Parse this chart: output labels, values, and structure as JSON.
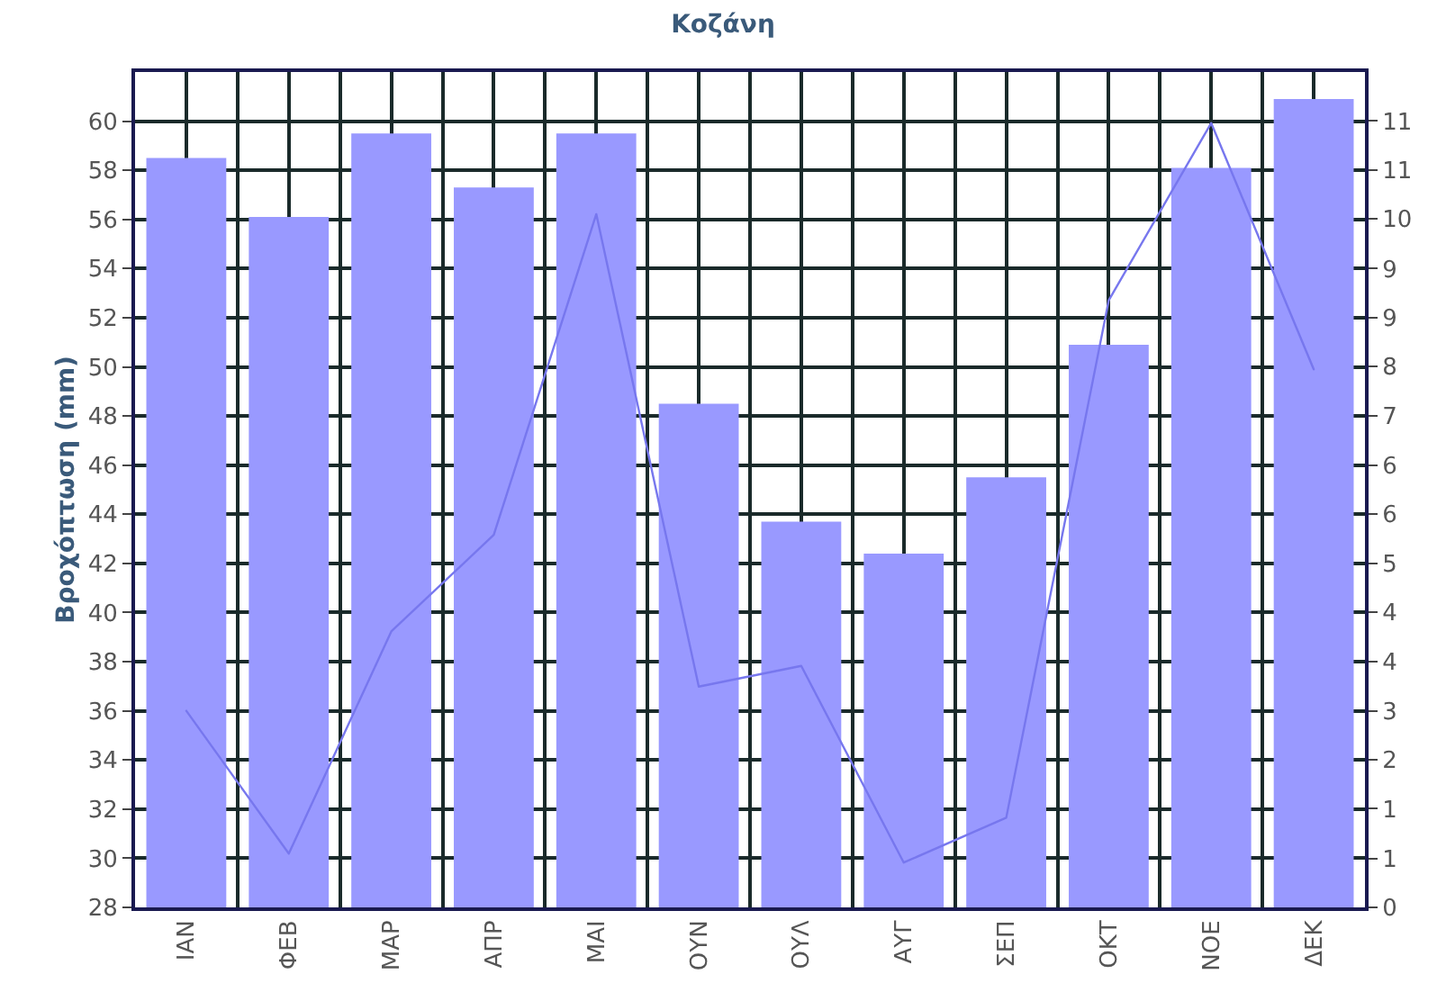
{
  "chart_data": {
    "type": "bar",
    "title": "Κοζάνη",
    "ylabel": "Βροχόπτωση (mm)",
    "categories": [
      "ΙΑΝ",
      "ΦΕΒ",
      "ΜΑΡ",
      "ΑΠΡ",
      "ΜΑΙ",
      "ΟΥΝ",
      "ΟΥΛ",
      "ΑΥΓ",
      "ΣΕΠ",
      "ΟΚΤ",
      "ΝΟΕ",
      "ΔΕΚ"
    ],
    "series": [
      {
        "color": "#9999ff",
        "values": [
          58.5,
          56.1,
          59.5,
          57.3,
          59.5,
          48.5,
          43.7,
          42.4,
          45.5,
          50.9,
          58.1,
          60.9
        ]
      },
      {
        "type": "line",
        "axis": "y2",
        "color": "#7777ee",
        "values": [
          2.85,
          0.78,
          4.0,
          5.4,
          10.05,
          3.2,
          3.5,
          0.65,
          1.3,
          8.8,
          11.37,
          7.8
        ]
      }
    ],
    "ylim": [
      28,
      62
    ],
    "yticks": [
      28,
      30,
      32,
      34,
      36,
      38,
      40,
      42,
      44,
      46,
      48,
      50,
      52,
      54,
      56,
      58,
      60
    ],
    "y2lim": [
      0,
      12.11
    ],
    "y2ticks": [
      0,
      {
        "value": 0.71,
        "label": "1"
      },
      {
        "value": 1.43,
        "label": "1"
      },
      {
        "value": 2.14,
        "label": "2"
      },
      {
        "value": 2.85,
        "label": "3"
      },
      {
        "value": 3.56,
        "label": "4"
      },
      {
        "value": 4.28,
        "label": "4"
      },
      {
        "value": 4.99,
        "label": "5"
      },
      {
        "value": 5.7,
        "label": "6"
      },
      {
        "value": 6.41,
        "label": "6"
      },
      {
        "value": 7.13,
        "label": "7"
      },
      {
        "value": 7.84,
        "label": "8"
      },
      {
        "value": 8.55,
        "label": "9"
      },
      {
        "value": 9.26,
        "label": "9"
      },
      {
        "value": 9.98,
        "label": "10"
      },
      {
        "value": 10.69,
        "label": "11"
      },
      {
        "value": 11.4,
        "label": "11"
      }
    ],
    "grid": true,
    "legend": false,
    "marker": "none",
    "line_style": "solid"
  }
}
